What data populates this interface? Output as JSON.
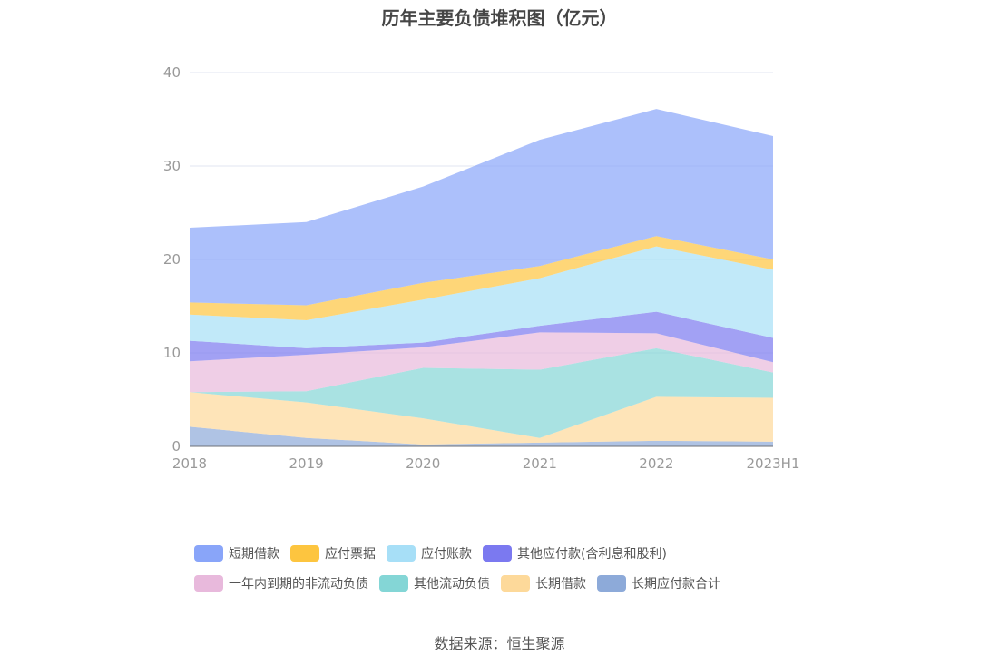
{
  "chart_data": {
    "type": "area",
    "stacked": true,
    "title": "历年主要负债堆积图（亿元）",
    "categories": [
      "2018",
      "2019",
      "2020",
      "2021",
      "2022",
      "2023H1"
    ],
    "ylim": [
      0,
      40
    ],
    "yticks": [
      "0",
      "10",
      "20",
      "30",
      "40"
    ],
    "grid": true,
    "legend_position": "bottom",
    "series": [
      {
        "name": "长期应付款合计",
        "color": "#8daad9",
        "values": [
          2.1,
          0.9,
          0.2,
          0.4,
          0.6,
          0.5
        ]
      },
      {
        "name": "长期借款",
        "color": "#fdd99a",
        "values": [
          3.7,
          3.8,
          2.8,
          0.5,
          4.7,
          4.7
        ]
      },
      {
        "name": "其他流动负债",
        "color": "#84d6d6",
        "values": [
          0.0,
          1.2,
          5.4,
          7.3,
          5.2,
          2.7
        ]
      },
      {
        "name": "一年内到期的非流动负债",
        "color": "#e8b9dc",
        "values": [
          3.3,
          3.9,
          2.2,
          4.0,
          1.6,
          1.1
        ]
      },
      {
        "name": "其他应付款(含利息和股利)",
        "color": "#7b79f0",
        "values": [
          2.2,
          0.7,
          0.5,
          0.7,
          2.3,
          2.6
        ]
      },
      {
        "name": "应付账款",
        "color": "#a7dff7",
        "values": [
          2.8,
          3.0,
          4.6,
          5.1,
          7.0,
          7.3
        ]
      },
      {
        "name": "应付票据",
        "color": "#fdc53f",
        "values": [
          1.3,
          1.6,
          1.8,
          1.3,
          1.1,
          1.1
        ]
      },
      {
        "name": "短期借款",
        "color": "#89a5f9",
        "values": [
          8.0,
          8.9,
          10.3,
          13.5,
          13.6,
          13.2
        ]
      }
    ],
    "legend_order": [
      "短期借款",
      "应付票据",
      "应付账款",
      "其他应付款(含利息和股利)",
      "一年内到期的非流动负债",
      "其他流动负债",
      "长期借款",
      "长期应付款合计"
    ]
  },
  "source": "数据来源：恒生聚源"
}
